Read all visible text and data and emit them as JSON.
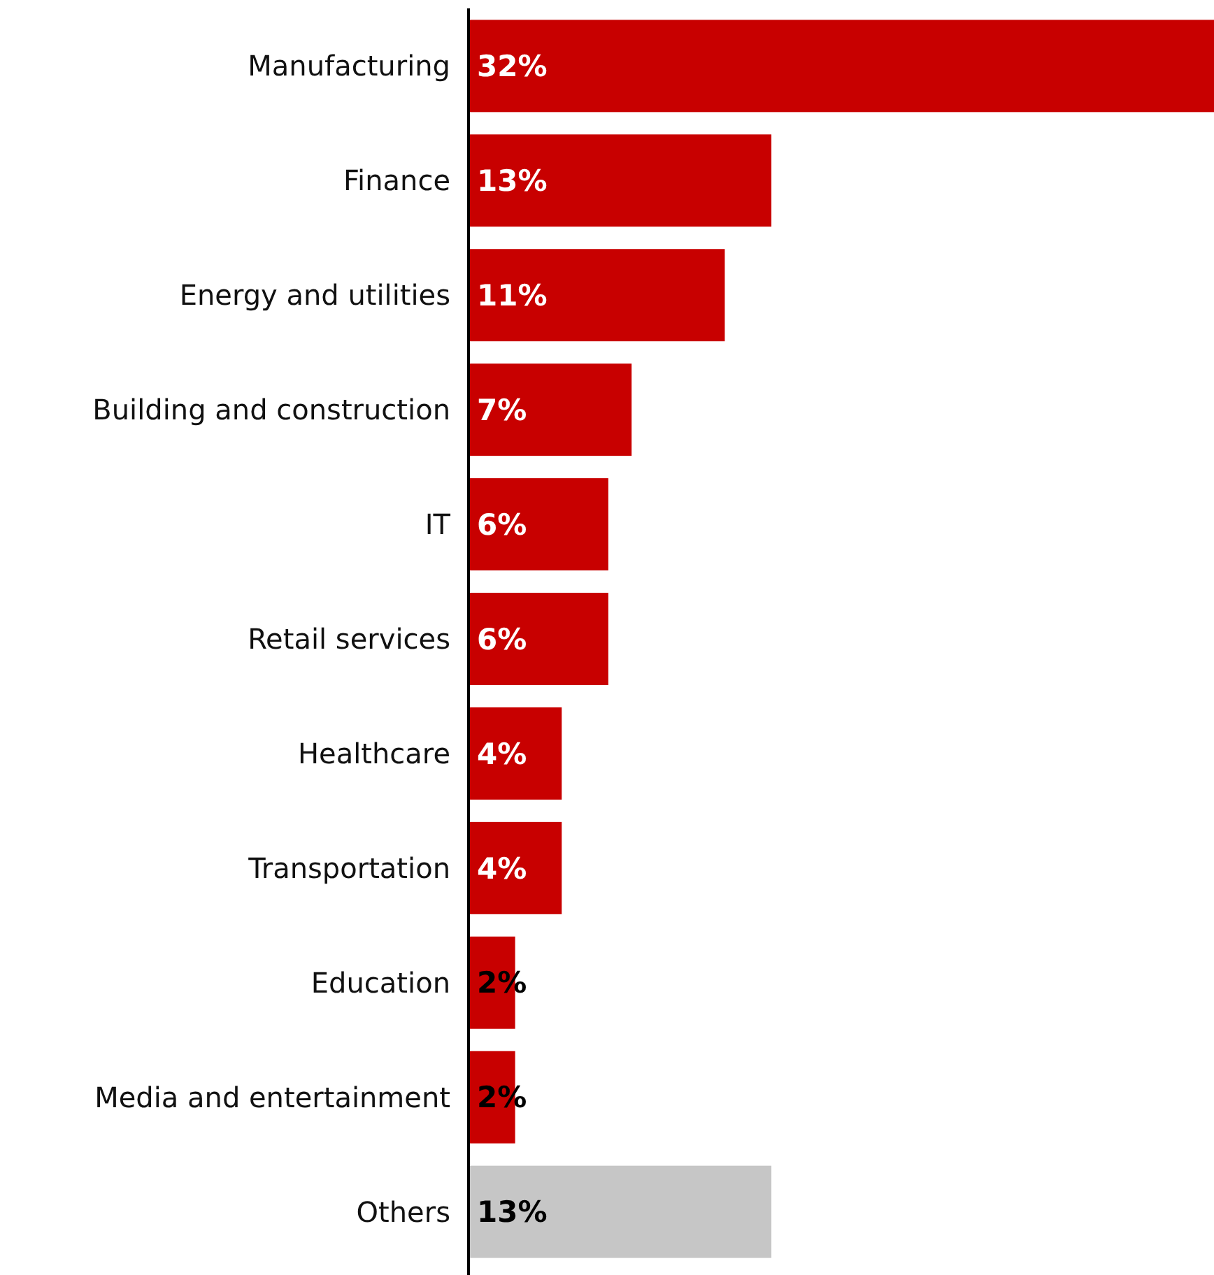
{
  "chart_data": {
    "type": "bar",
    "orientation": "horizontal",
    "categories": [
      "Manufacturing",
      "Finance",
      "Energy and utilities",
      "Building and construction",
      "IT",
      "Retail services",
      "Healthcare",
      "Transportation",
      "Education",
      "Media and entertainment",
      "Others"
    ],
    "values": [
      32,
      13,
      11,
      7,
      6,
      6,
      4,
      4,
      2,
      2,
      13
    ],
    "value_labels": [
      "32%",
      "13%",
      "11%",
      "7%",
      "6%",
      "6%",
      "4%",
      "4%",
      "2%",
      "2%",
      "13%"
    ],
    "colors": [
      "#c80000",
      "#c80000",
      "#c80000",
      "#c80000",
      "#c80000",
      "#c80000",
      "#c80000",
      "#c80000",
      "#c80000",
      "#c80000",
      "#c6c6c6"
    ]
  }
}
